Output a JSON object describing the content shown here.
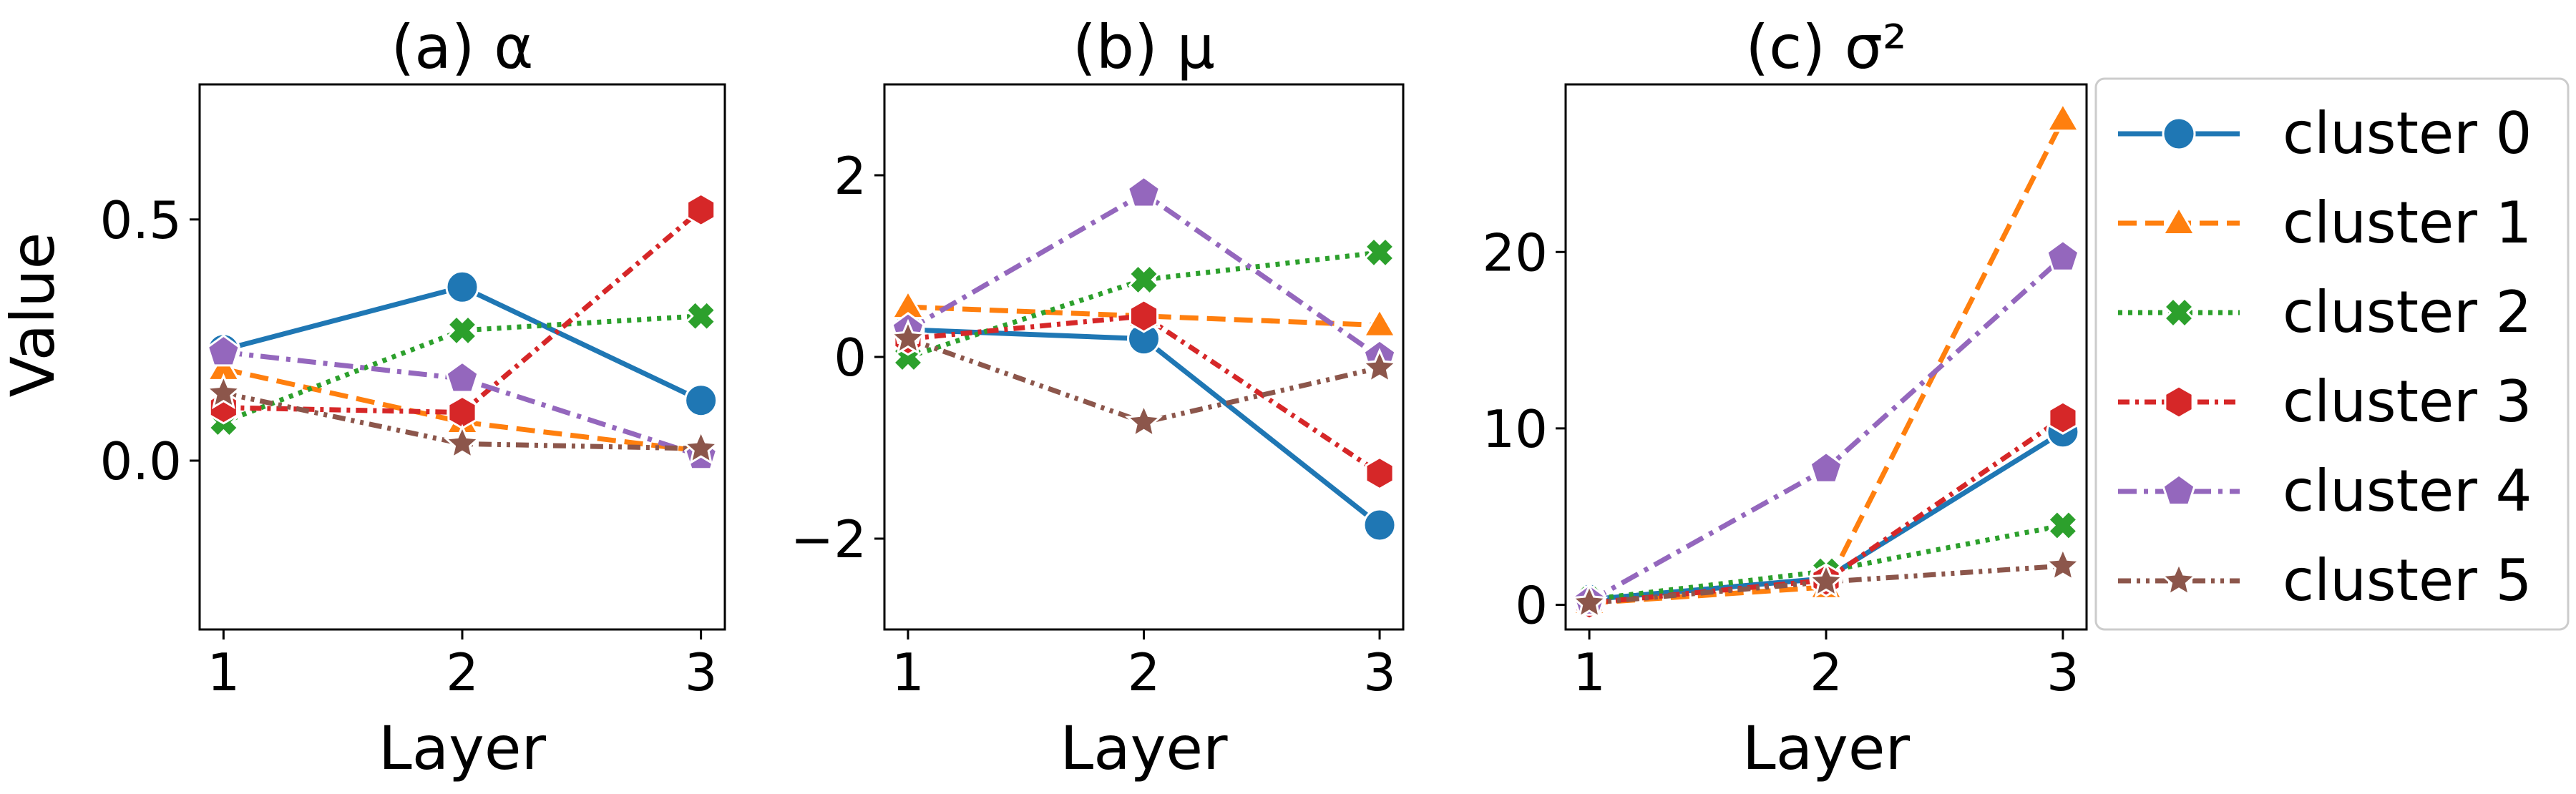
{
  "figure": {
    "ylabel": "Value",
    "xlabel": "Layer"
  },
  "chart_data": [
    {
      "type": "line",
      "title": "(a) α",
      "xlabel": "Layer",
      "ylabel": "Value",
      "x": [
        1,
        2,
        3
      ],
      "xticks": [
        "1",
        "2",
        "3"
      ],
      "ylim": [
        -0.35,
        0.78
      ],
      "yticks": [
        0.5,
        0.0
      ],
      "ytick_labels": [
        "0.5",
        "0.0"
      ],
      "grid": false,
      "series": [
        {
          "name": "cluster 0",
          "values": [
            0.23,
            0.36,
            0.125
          ]
        },
        {
          "name": "cluster 1",
          "values": [
            0.19,
            0.08,
            0.02
          ]
        },
        {
          "name": "cluster 2",
          "values": [
            0.08,
            0.27,
            0.3
          ]
        },
        {
          "name": "cluster 3",
          "values": [
            0.11,
            0.1,
            0.52
          ]
        },
        {
          "name": "cluster 4",
          "values": [
            0.225,
            0.17,
            0.01
          ]
        },
        {
          "name": "cluster 5",
          "values": [
            0.14,
            0.035,
            0.025
          ]
        }
      ]
    },
    {
      "type": "line",
      "title": "(b) μ",
      "xlabel": "Layer",
      "ylabel": "",
      "x": [
        1,
        2,
        3
      ],
      "xticks": [
        "1",
        "2",
        "3"
      ],
      "ylim": [
        -3.0,
        3.0
      ],
      "yticks": [
        2,
        0,
        -2
      ],
      "ytick_labels": [
        "2",
        "0",
        "−2"
      ],
      "grid": false,
      "series": [
        {
          "name": "cluster 0",
          "values": [
            0.3,
            0.2,
            -1.85
          ]
        },
        {
          "name": "cluster 1",
          "values": [
            0.55,
            0.45,
            0.35
          ]
        },
        {
          "name": "cluster 2",
          "values": [
            0.0,
            0.85,
            1.15
          ]
        },
        {
          "name": "cluster 3",
          "values": [
            0.2,
            0.45,
            -1.28
          ]
        },
        {
          "name": "cluster 4",
          "values": [
            0.3,
            1.8,
            0.0
          ]
        },
        {
          "name": "cluster 5",
          "values": [
            0.2,
            -0.72,
            -0.12
          ]
        }
      ]
    },
    {
      "type": "line",
      "title": "(c) σ²",
      "xlabel": "Layer",
      "ylabel": "",
      "x": [
        1,
        2,
        3
      ],
      "xticks": [
        "1",
        "2",
        "3"
      ],
      "ylim": [
        -1.4,
        29.5
      ],
      "yticks": [
        20,
        10,
        0
      ],
      "ytick_labels": [
        "20",
        "10",
        "0"
      ],
      "grid": false,
      "legend_position": "right-outside",
      "series": [
        {
          "name": "cluster 0",
          "values": [
            0.3,
            1.5,
            9.8
          ]
        },
        {
          "name": "cluster 1",
          "values": [
            0.1,
            1.0,
            27.5
          ]
        },
        {
          "name": "cluster 2",
          "values": [
            0.3,
            1.9,
            4.5
          ]
        },
        {
          "name": "cluster 3",
          "values": [
            0.1,
            1.4,
            10.6
          ]
        },
        {
          "name": "cluster 4",
          "values": [
            0.2,
            7.7,
            19.7
          ]
        },
        {
          "name": "cluster 5",
          "values": [
            0.1,
            1.3,
            2.2
          ]
        }
      ]
    }
  ],
  "legend": {
    "position": "right-outside",
    "items": [
      {
        "label": "cluster 0",
        "color": "#1f77b4",
        "dash": "solid",
        "marker": "circle"
      },
      {
        "label": "cluster 1",
        "color": "#ff7f0e",
        "dash": "dashed",
        "marker": "triangle"
      },
      {
        "label": "cluster 2",
        "color": "#2ca02c",
        "dash": "dotted",
        "marker": "x"
      },
      {
        "label": "cluster 3",
        "color": "#d62728",
        "dash": "dashdot-short",
        "marker": "hexagon"
      },
      {
        "label": "cluster 4",
        "color": "#9467bd",
        "dash": "dashdot",
        "marker": "pentagon"
      },
      {
        "label": "cluster 5",
        "color": "#8c564b",
        "dash": "dashdotdot",
        "marker": "star"
      }
    ]
  }
}
